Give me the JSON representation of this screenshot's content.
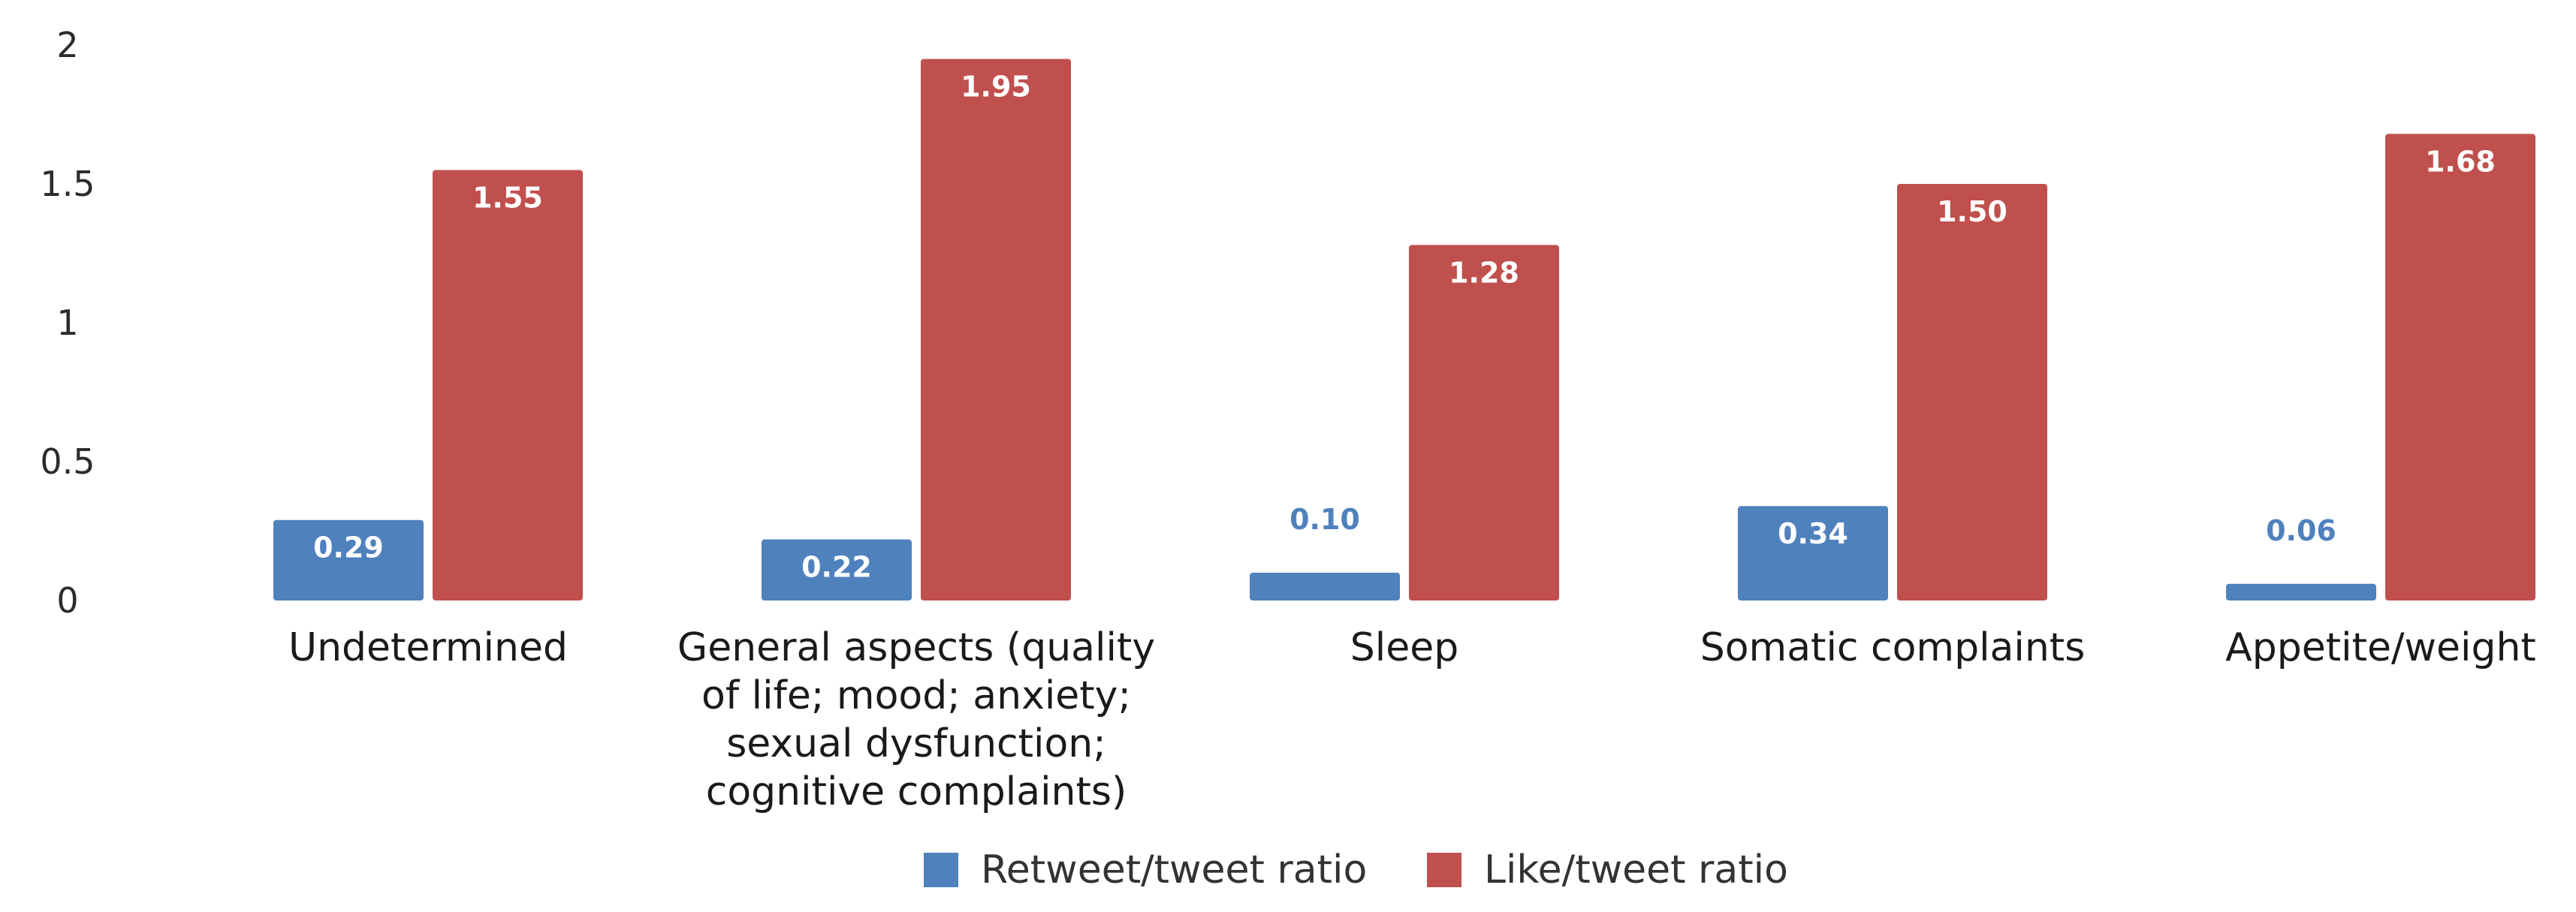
{
  "chart_data": {
    "type": "bar",
    "title": "",
    "xlabel": "",
    "ylabel": "",
    "ylim": [
      0,
      2
    ],
    "yticks": [
      "0",
      "0.5",
      "1",
      "1.5",
      "2"
    ],
    "ytick_values": [
      0,
      0.5,
      1,
      1.5,
      2
    ],
    "grid": false,
    "legend_position": "bottom",
    "categories": [
      [
        "Undetermined"
      ],
      [
        "General aspects (quality",
        "of life; mood; anxiety;",
        "sexual dysfunction;",
        "cognitive complaints)"
      ],
      [
        "Sleep"
      ],
      [
        "Somatic complaints"
      ],
      [
        "Appetite/weight"
      ]
    ],
    "series": [
      {
        "name": "Retweet/tweet ratio",
        "color": "#4f81bd",
        "values": [
          0.29,
          0.22,
          0.1,
          0.34,
          0.06
        ],
        "labels": [
          "0.29",
          "0.22",
          "0.10",
          "0.34",
          "0.06"
        ]
      },
      {
        "name": "Like/tweet ratio",
        "color": "#c0504d",
        "values": [
          1.55,
          1.95,
          1.28,
          1.5,
          1.68
        ],
        "labels": [
          "1.55",
          "1.95",
          "1.28",
          "1.50",
          "1.68"
        ]
      }
    ]
  }
}
